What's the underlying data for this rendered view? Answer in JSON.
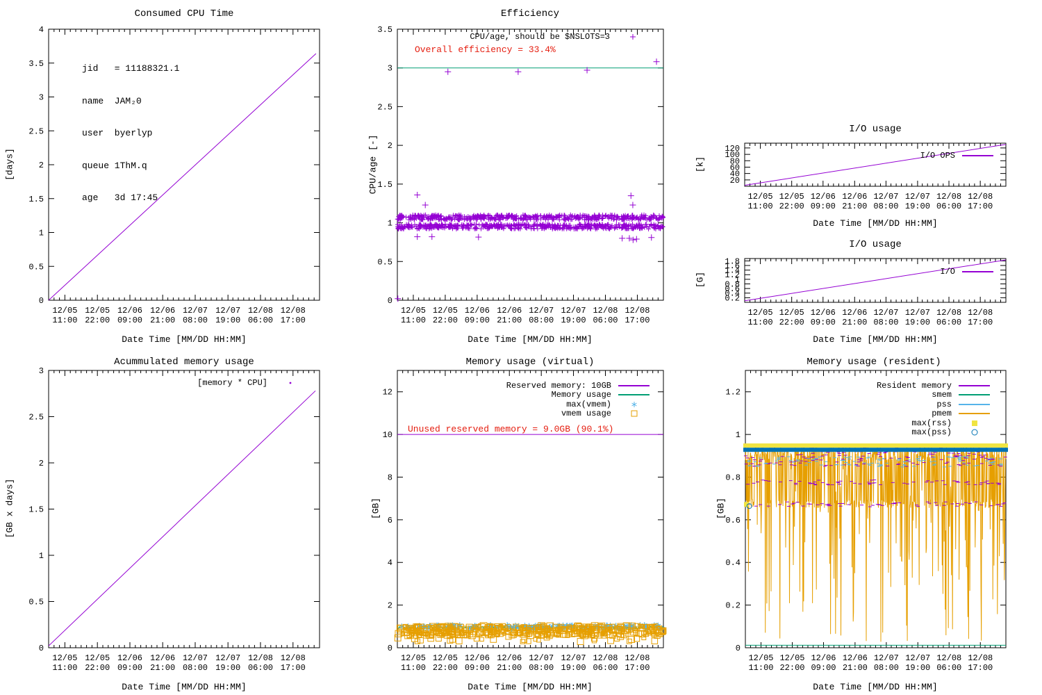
{
  "palette": {
    "purple": "#9400d3",
    "teal": "#009e73",
    "skyblue": "#56b4e9",
    "orange": "#e69f00",
    "yellow": "#f0e442",
    "blue": "#0072b2",
    "red": "#e51e10",
    "border": "#000000"
  },
  "chart_data": {
    "shared_x": {
      "label": "Date Time [MM/DD HH:MM]",
      "tick_positions": [
        0.06,
        0.18,
        0.3,
        0.421,
        0.541,
        0.662,
        0.782,
        0.902
      ],
      "tick_labels": [
        [
          "12/05",
          "11:00"
        ],
        [
          "12/05",
          "22:00"
        ],
        [
          "12/06",
          "09:00"
        ],
        [
          "12/06",
          "21:00"
        ],
        [
          "12/07",
          "08:00"
        ],
        [
          "12/07",
          "19:00"
        ],
        [
          "12/08",
          "06:00"
        ],
        [
          "12/08",
          "17:00"
        ]
      ]
    },
    "charts": [
      {
        "type": "line",
        "title": "Consumed CPU Time",
        "ylabel": "[days]",
        "ylim": [
          0,
          4
        ],
        "ytick_values": [
          0,
          0.5,
          1,
          1.5,
          2,
          2.5,
          3,
          3.5,
          4
        ],
        "ytick_labels": [
          "0",
          "0.5",
          "1",
          "1.5",
          "2",
          "2.5",
          "3",
          "3.5",
          "4"
        ],
        "info_lines": [
          "jid   = 11188321.1",
          "name  JAM₂0",
          "user  byerlyp",
          "queue 1ThM.q",
          "age   3d 17:45"
        ],
        "series": [
          {
            "name": "cpu-time",
            "type": "line",
            "color": "#9400d3",
            "width": 1,
            "points": [
              [
                0,
                0
              ],
              [
                0.987,
                3.64
              ]
            ]
          }
        ]
      },
      {
        "type": "scatter",
        "title": "Efficiency",
        "ylabel": "CPU/age [-]",
        "ylim": [
          0,
          3.5
        ],
        "ytick_values": [
          0,
          0.5,
          1,
          1.5,
          2,
          2.5,
          3,
          3.5
        ],
        "ytick_labels": [
          "0",
          "0.5",
          "1",
          "1.5",
          "2",
          "2.5",
          "3",
          "3.5"
        ],
        "legend": [
          {
            "label": "CPU/age, should be $NSLOTS=3",
            "sample": "plus",
            "color": "#9400d3"
          }
        ],
        "annotation": {
          "text": "Overall efficiency = 33.4%",
          "color": "#e51e10"
        },
        "series": [
          {
            "name": "nslots-target",
            "type": "hline",
            "y": 3,
            "color": "#009e73",
            "width": 1
          },
          {
            "name": "cpu-age-band-high",
            "type": "noisy_band",
            "marker": "plus",
            "color": "#9400d3",
            "n": 520,
            "y": 1.07,
            "jitter": 0.032,
            "seed": 11,
            "size": 7
          },
          {
            "name": "cpu-age-band-low",
            "type": "noisy_band",
            "marker": "plus",
            "color": "#9400d3",
            "n": 520,
            "y": 0.952,
            "jitter": 0.032,
            "seed": 22,
            "size": 7
          },
          {
            "name": "cpu-age-outliers",
            "type": "scatter",
            "marker": "plus",
            "color": "#9400d3",
            "size": 9,
            "points": [
              [
                0.19,
                2.95
              ],
              [
                0.454,
                2.95
              ],
              [
                0.713,
                2.97
              ],
              [
                0.974,
                3.08
              ],
              [
                0.075,
                1.36
              ],
              [
                0.105,
                1.23
              ],
              [
                0.878,
                1.35
              ],
              [
                0.885,
                1.23
              ],
              [
                0.002,
                0.02
              ],
              [
                0.075,
                0.82
              ],
              [
                0.13,
                0.82
              ],
              [
                0.305,
                0.815
              ],
              [
                0.845,
                0.8
              ],
              [
                0.872,
                0.8
              ],
              [
                0.886,
                0.78
              ],
              [
                0.899,
                0.79
              ],
              [
                0.955,
                0.81
              ]
            ]
          }
        ]
      },
      {
        "type": "line",
        "title": "I/O usage",
        "ylabel": "[k]",
        "ylim": [
          0,
          135
        ],
        "ytick_values": [
          20,
          40,
          60,
          80,
          100,
          120
        ],
        "ytick_labels": [
          "20",
          "40",
          "60",
          "80",
          "100",
          "120"
        ],
        "legend": [
          {
            "label": "I/O OPS",
            "sample": "line",
            "color": "#9400d3"
          }
        ],
        "series": [
          {
            "name": "io-ops",
            "type": "line",
            "color": "#9400d3",
            "width": 1,
            "points": [
              [
                0,
                3
              ],
              [
                1,
                131
              ]
            ]
          }
        ]
      },
      {
        "type": "line",
        "title": "I/O usage",
        "ylabel": "[G]",
        "ylim": [
          0,
          1.9
        ],
        "ytick_values": [
          0.2,
          0.4,
          0.6,
          0.8,
          1.0,
          1.2,
          1.4,
          1.6,
          1.8
        ],
        "ytick_labels": [
          "0.2",
          "0.4",
          "0.6",
          "0.8",
          "1",
          "1.2",
          "1.4",
          "1.6",
          "1.8"
        ],
        "legend": [
          {
            "label": "I/O",
            "sample": "line",
            "color": "#9400d3"
          }
        ],
        "series": [
          {
            "name": "io-gb",
            "type": "line",
            "color": "#9400d3",
            "width": 1,
            "points": [
              [
                0,
                0.07
              ],
              [
                1,
                1.84
              ]
            ]
          }
        ]
      },
      {
        "type": "line",
        "title": "Acummulated memory usage",
        "ylabel": "[GB x days]",
        "ylim": [
          0,
          3
        ],
        "ytick_values": [
          0,
          0.5,
          1,
          1.5,
          2,
          2.5,
          3
        ],
        "ytick_labels": [
          "0",
          "0.5",
          "1",
          "1.5",
          "2",
          "2.5",
          "3"
        ],
        "legend": [
          {
            "label": "[memory * CPU]",
            "sample": "dot",
            "color": "#9400d3"
          }
        ],
        "series": [
          {
            "name": "memory-times-cpu",
            "type": "line",
            "color": "#9400d3",
            "width": 1,
            "points": [
              [
                0,
                0.02
              ],
              [
                0.985,
                2.78
              ]
            ]
          }
        ]
      },
      {
        "type": "mixed",
        "title": "Memory usage (virtual)",
        "ylabel": "[GB]",
        "ylim": [
          0,
          13
        ],
        "ytick_values": [
          0,
          2,
          4,
          6,
          8,
          10,
          12
        ],
        "ytick_labels": [
          "0",
          "2",
          "4",
          "6",
          "8",
          "10",
          "12"
        ],
        "legend": [
          {
            "label": "Reserved memory: 10GB",
            "sample": "line",
            "color": "#9400d3"
          },
          {
            "label": "Memory usage",
            "sample": "line",
            "color": "#009e73"
          },
          {
            "label": "max(vmem)",
            "sample": "asterisk",
            "color": "#56b4e9"
          },
          {
            "label": "vmem usage",
            "sample": "square-open",
            "color": "#e69f00"
          }
        ],
        "annotation": {
          "text": "Unused reserved memory = 9.0GB (90.1%)",
          "color": "#e51e10"
        },
        "series": [
          {
            "name": "reserved-memory",
            "type": "hline",
            "y": 10,
            "color": "#9400d3",
            "width": 1
          },
          {
            "name": "memory-usage",
            "type": "noisy_line",
            "color": "#009e73",
            "width": 1,
            "n": 260,
            "seed": 33,
            "levels": [
              {
                "p": 1,
                "y": 0.95,
                "j": 0.06
              }
            ]
          },
          {
            "name": "max-vmem",
            "type": "noisy_band",
            "marker": "asterisk",
            "color": "#56b4e9",
            "n": 150,
            "y": 0.97,
            "jitter": 0.09,
            "seed": 44,
            "size": 9
          },
          {
            "name": "vmem-usage",
            "type": "noisy_band",
            "marker": "square-open",
            "color": "#e69f00",
            "n": 430,
            "y": 0.8,
            "jitter": 0.23,
            "seed": 55,
            "size": 7,
            "sizejitter": 3
          },
          {
            "name": "vmem-usage-tail",
            "type": "noisy_band",
            "marker": "square-open",
            "color": "#e69f00",
            "n": 40,
            "y": 0.45,
            "jitter": 0.17,
            "seed": 56,
            "size": 7,
            "sizejitter": 2
          }
        ]
      },
      {
        "type": "mixed",
        "title": "Memory usage (resident)",
        "ylabel": "[GB]",
        "ylim": [
          0,
          1.3
        ],
        "ytick_values": [
          0,
          0.2,
          0.4,
          0.6,
          0.8,
          1.0,
          1.2
        ],
        "ytick_labels": [
          "0",
          "0.2",
          "0.4",
          "0.6",
          "0.8",
          "1",
          "1.2"
        ],
        "legend": [
          {
            "label": "Resident memory",
            "sample": "line",
            "color": "#9400d3"
          },
          {
            "label": "smem",
            "sample": "line",
            "color": "#009e73"
          },
          {
            "label": "pss",
            "sample": "line",
            "color": "#56b4e9"
          },
          {
            "label": "pmem",
            "sample": "line",
            "color": "#e69f00"
          },
          {
            "label": "max(rss)",
            "sample": "square-filled",
            "color": "#f0e442"
          },
          {
            "label": "max(pss)",
            "sample": "circle-open",
            "color": "#0072b2"
          }
        ],
        "series": [
          {
            "name": "pmem",
            "type": "noisy_line",
            "color": "#e69f00",
            "width": 1,
            "n": 680,
            "seed": 66,
            "levels": [
              {
                "p": 0.48,
                "y": 0.915,
                "j": 0.035
              },
              {
                "p": 0.32,
                "y": 0.675,
                "j": 0.02
              },
              {
                "p": 0.2,
                "y": 0.47,
                "j": 0.45
              }
            ]
          },
          {
            "name": "resident-memory",
            "type": "dash_scatter",
            "color": "#9400d3",
            "n": 300,
            "seed": 77,
            "levels": [
              {
                "p": 0.6,
                "y": 0.9,
                "j": 0.05
              },
              {
                "p": 0.2,
                "y": 0.775,
                "j": 0.012
              },
              {
                "p": 0.2,
                "y": 0.672,
                "j": 0.012
              }
            ]
          },
          {
            "name": "pss",
            "type": "dash_scatter",
            "color": "#56b4e9",
            "n": 110,
            "seed": 88,
            "levels": [
              {
                "p": 1,
                "y": 0.872,
                "j": 0.025
              }
            ]
          },
          {
            "name": "max-rss-band",
            "type": "thick_band",
            "color": "#f0e442",
            "y": 0.948,
            "hpx": 6
          },
          {
            "name": "max-pss-band",
            "type": "thick_band",
            "color": "#0072b2",
            "y": 0.928,
            "hpx": 6
          },
          {
            "name": "max-rss-start",
            "type": "scatter",
            "marker": "square-filled",
            "color": "#f0e442",
            "size": 7,
            "points": [
              [
                0.004,
                0.672
              ]
            ]
          },
          {
            "name": "max-pss-start",
            "type": "scatter",
            "marker": "circle-open",
            "color": "#0072b2",
            "size": 7,
            "points": [
              [
                0.015,
                0.664
              ]
            ]
          },
          {
            "name": "smem",
            "type": "hline",
            "y": 0.012,
            "color": "#009e73",
            "width": 1
          }
        ]
      }
    ]
  }
}
